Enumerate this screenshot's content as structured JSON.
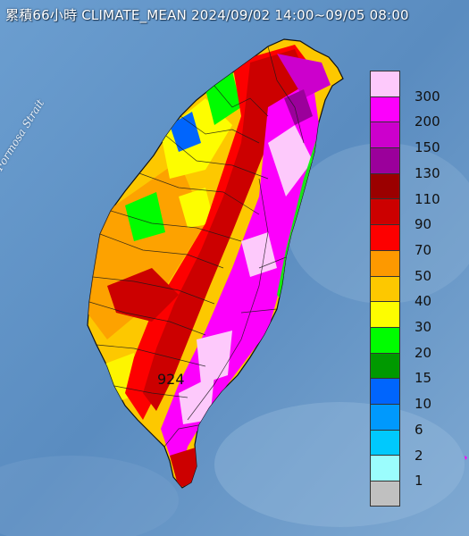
{
  "title": "累積66小時 CLIMATE_MEAN 2024/09/02 14:00~09/05 08:00",
  "water_label": "Formosa Strait",
  "max_station_value": "924",
  "legend": {
    "levels": [
      "300",
      "200",
      "150",
      "130",
      "110",
      "90",
      "70",
      "50",
      "40",
      "30",
      "20",
      "15",
      "10",
      "6",
      "2",
      "1"
    ],
    "colors": [
      "#fdc9fb",
      "#fc00fc",
      "#cc00cc",
      "#9b009b",
      "#9b0000",
      "#cc0000",
      "#fd0000",
      "#fd9900",
      "#fdc800",
      "#fdfd00",
      "#00fd00",
      "#009900",
      "#0065fd",
      "#0099fd",
      "#00c9fd",
      "#9bfdfd",
      "#c0c0c0"
    ]
  }
}
